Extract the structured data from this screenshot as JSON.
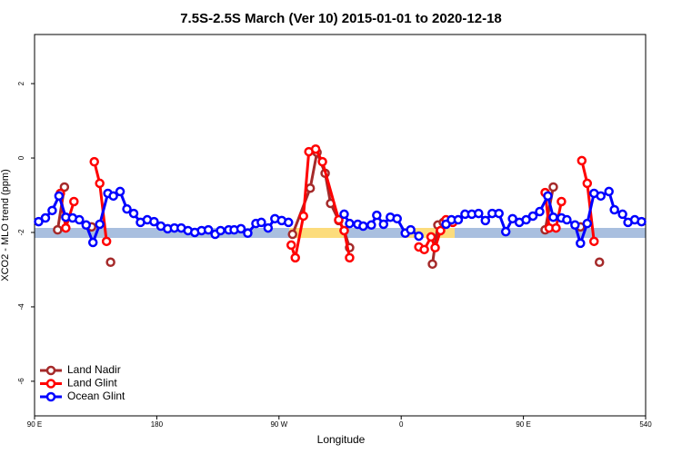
{
  "chart_data": {
    "type": "line",
    "title": "7.5S-2.5S March (Ver 10)   2015-01-01 to 2020-12-18",
    "x_label": "Longitude",
    "y_label": "XCO2 - MLO trend (ppm)",
    "xlim": [
      90,
      540
    ],
    "xticks": [
      {
        "value": 90,
        "label": "90 E"
      },
      180,
      {
        "value": 270,
        "label": "90 W"
      },
      {
        "value": 360,
        "label": "0"
      },
      {
        "value": 450,
        "label": "90 E"
      },
      540
    ],
    "ylim": [
      -6.93,
      3.32
    ],
    "yticks": [
      -6,
      -4,
      -2,
      0,
      2
    ],
    "legend": "lower left",
    "series": [
      {
        "name": "Land Nadir",
        "color": "#a52a2a",
        "x": [
          107,
          112,
          null,
          132,
          null,
          146,
          null,
          280,
          293,
          298,
          304,
          308,
          314,
          318,
          322,
          null,
          383,
          387,
          391,
          null,
          466,
          472,
          null,
          492,
          null,
          506
        ],
        "values": [
          -1.93,
          -0.78,
          null,
          -1.85,
          null,
          -2.8,
          null,
          -2.05,
          -0.81,
          0.15,
          -0.41,
          -1.22,
          -1.68,
          -1.95,
          -2.41,
          null,
          -2.85,
          -1.8,
          -1.73,
          null,
          -1.93,
          -0.78,
          null,
          -1.85,
          null,
          -2.8
        ]
      },
      {
        "name": "Land Glint",
        "color": "#ff0000",
        "x": [
          109,
          113,
          119,
          null,
          134,
          138,
          143,
          null,
          279,
          282,
          288,
          292,
          297,
          302,
          314,
          318,
          322,
          null,
          373,
          377,
          382,
          385,
          389,
          393,
          398,
          null,
          466,
          469,
          474,
          478,
          null,
          493,
          497,
          502
        ],
        "values": [
          -0.95,
          -1.88,
          -1.17,
          null,
          -0.1,
          -0.68,
          -2.24,
          null,
          -2.34,
          -2.68,
          -1.56,
          0.17,
          0.24,
          -0.1,
          -1.66,
          -1.95,
          -2.68,
          null,
          -2.39,
          -2.46,
          -2.12,
          -2.41,
          -1.95,
          -1.66,
          -1.73,
          null,
          -0.93,
          -1.88,
          -1.88,
          -1.17,
          null,
          -0.07,
          -0.68,
          -2.24
        ]
      },
      {
        "name": "Ocean Glint",
        "color": "#0000ff",
        "x": [
          93,
          98,
          103,
          108,
          113,
          118,
          123,
          128,
          133,
          138,
          144,
          148,
          153,
          158,
          163,
          168,
          173,
          178,
          183,
          188,
          193,
          198,
          203,
          208,
          213,
          218,
          223,
          227,
          233,
          237,
          242,
          247,
          253,
          257,
          262,
          267,
          272,
          277,
          null,
          318,
          322,
          328,
          332,
          338,
          342,
          347,
          352,
          357,
          363,
          367,
          373,
          null,
          393,
          397,
          402,
          407,
          412,
          417,
          422,
          427,
          432,
          437,
          442,
          447,
          452,
          457,
          462,
          468,
          472,
          478,
          482,
          488,
          492,
          497,
          502,
          507,
          513,
          517,
          523,
          527,
          532,
          537
        ],
        "values": [
          -1.71,
          -1.61,
          -1.41,
          -1.02,
          -1.59,
          -1.61,
          -1.66,
          -1.8,
          -2.27,
          -1.78,
          -0.95,
          -1.02,
          -0.9,
          -1.37,
          -1.49,
          -1.73,
          -1.66,
          -1.71,
          -1.83,
          -1.9,
          -1.88,
          -1.88,
          -1.95,
          -2.0,
          -1.95,
          -1.93,
          -2.05,
          -1.95,
          -1.93,
          -1.93,
          -1.9,
          -2.02,
          -1.76,
          -1.73,
          -1.88,
          -1.63,
          -1.68,
          -1.73,
          null,
          -1.51,
          -1.76,
          -1.78,
          -1.83,
          -1.8,
          -1.54,
          -1.78,
          -1.59,
          -1.63,
          -2.02,
          -1.93,
          -2.1,
          null,
          -1.78,
          -1.66,
          -1.66,
          -1.51,
          -1.51,
          -1.49,
          -1.68,
          -1.49,
          -1.49,
          -1.98,
          -1.63,
          -1.73,
          -1.66,
          -1.56,
          -1.44,
          -1.02,
          -1.59,
          -1.61,
          -1.66,
          -1.8,
          -2.29,
          -1.76,
          -0.95,
          -1.02,
          -0.9,
          -1.39,
          -1.51,
          -1.73,
          -1.66,
          -1.71
        ]
      }
    ]
  }
}
